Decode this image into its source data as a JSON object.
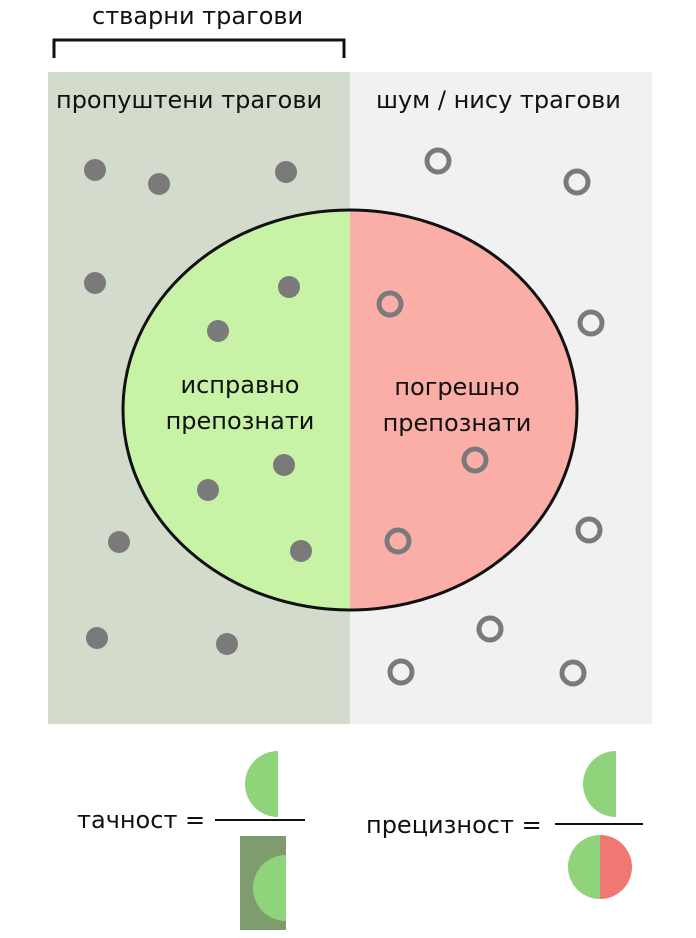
{
  "header": {
    "label": "стварни трагови"
  },
  "regions": {
    "left_title": "пропуштени трагови",
    "right_title": "шум / нису трагови",
    "left_color": "#d3dbcc",
    "right_color": "#f1f1f1"
  },
  "ellipse": {
    "left_label_line1": "исправно",
    "left_label_line2": "препознати",
    "right_label_line1": "погрешно",
    "right_label_line2": "препознати",
    "left_fill": "#c8f2a6",
    "right_fill": "#fbaea8"
  },
  "formulas": {
    "recall_label": "тачност =",
    "precision_label": "прецизност =",
    "half_green": "#8fd47a",
    "dark_green": "#7f9c6e",
    "red": "#f07872"
  },
  "colors": {
    "dot_fill": "#7a7a7a",
    "ring_stroke": "#7a7a7a"
  }
}
